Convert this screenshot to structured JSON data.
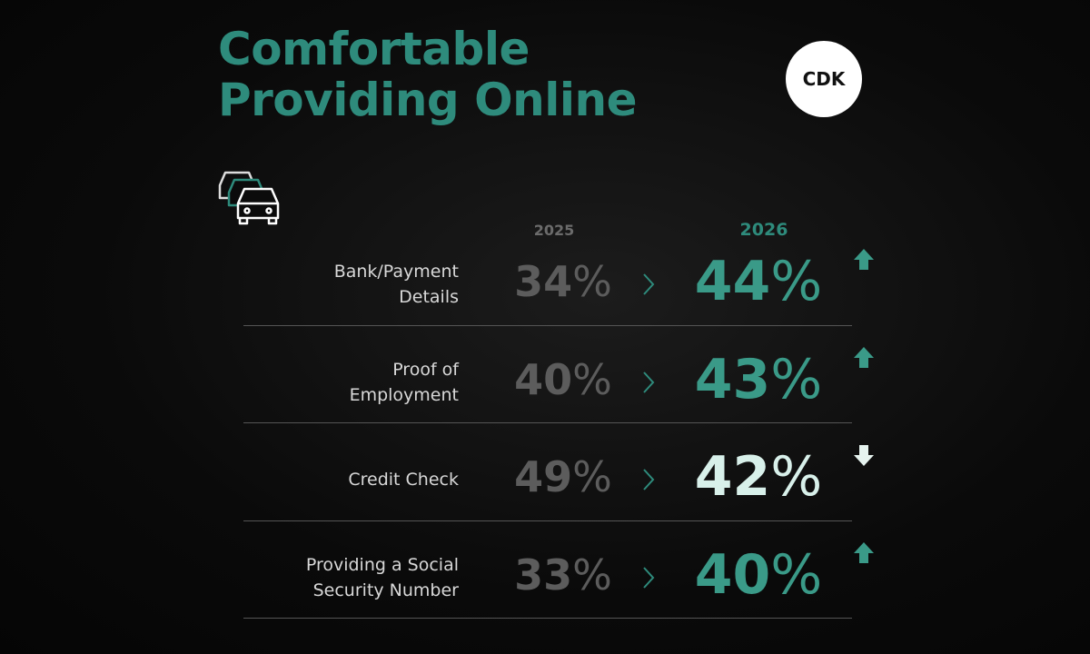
{
  "header": {
    "title_lines": [
      "Comfortable",
      "Providing Online"
    ],
    "logo": "CDK"
  },
  "table": {
    "columns": [
      "2025",
      "2026"
    ],
    "unit": "%",
    "rows": [
      {
        "label": [
          "Bank/Payment",
          "Details"
        ],
        "before": 34,
        "after": 44,
        "trend": "up"
      },
      {
        "label": [
          "Proof of",
          "Employment"
        ],
        "before": 40,
        "after": 43,
        "trend": "up"
      },
      {
        "label": [
          "Credit Check"
        ],
        "before": 49,
        "after": 42,
        "trend": "down"
      },
      {
        "label": [
          "Providing a Social",
          "Security Number"
        ],
        "before": 33,
        "after": 40,
        "trend": "up"
      }
    ]
  }
}
